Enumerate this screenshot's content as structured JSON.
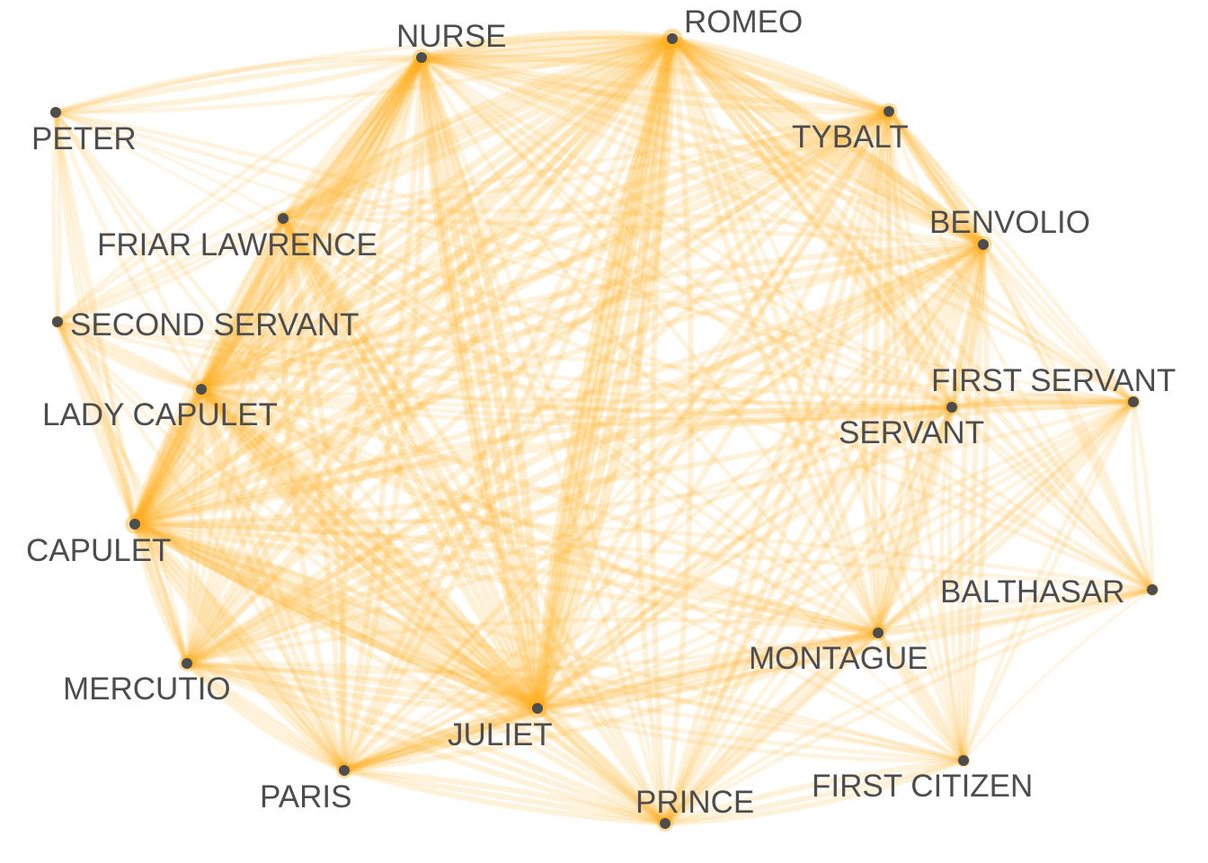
{
  "network": {
    "edge_color": "#FFB020",
    "node_color": "#4d4d4d",
    "label_color": "#4d4d4d",
    "nodes": [
      {
        "id": "NURSE",
        "label": "NURSE"
      },
      {
        "id": "ROMEO",
        "label": "ROMEO"
      },
      {
        "id": "PETER",
        "label": "PETER"
      },
      {
        "id": "TYBALT",
        "label": "TYBALT"
      },
      {
        "id": "FRIAR LAWRENCE",
        "label": "FRIAR LAWRENCE"
      },
      {
        "id": "BENVOLIO",
        "label": "BENVOLIO"
      },
      {
        "id": "SECOND SERVANT",
        "label": "SECOND SERVANT"
      },
      {
        "id": "FIRST SERVANT",
        "label": "FIRST SERVANT"
      },
      {
        "id": "LADY CAPULET",
        "label": "LADY CAPULET"
      },
      {
        "id": "SERVANT",
        "label": "SERVANT"
      },
      {
        "id": "CAPULET",
        "label": "CAPULET"
      },
      {
        "id": "BALTHASAR",
        "label": "BALTHASAR"
      },
      {
        "id": "MONTAGUE",
        "label": "MONTAGUE"
      },
      {
        "id": "MERCUTIO",
        "label": "MERCUTIO"
      },
      {
        "id": "JULIET",
        "label": "JULIET"
      },
      {
        "id": "PARIS",
        "label": "PARIS"
      },
      {
        "id": "PRINCE",
        "label": "PRINCE"
      },
      {
        "id": "FIRST CITIZEN",
        "label": "FIRST CITIZEN"
      }
    ],
    "edges": [
      [
        "ROMEO",
        "NURSE",
        5
      ],
      [
        "ROMEO",
        "JULIET",
        6
      ],
      [
        "ROMEO",
        "BENVOLIO",
        5
      ],
      [
        "ROMEO",
        "TYBALT",
        4
      ],
      [
        "ROMEO",
        "FRIAR LAWRENCE",
        4
      ],
      [
        "ROMEO",
        "LADY CAPULET",
        4
      ],
      [
        "ROMEO",
        "CAPULET",
        4
      ],
      [
        "ROMEO",
        "MERCUTIO",
        4
      ],
      [
        "ROMEO",
        "PARIS",
        3
      ],
      [
        "ROMEO",
        "PRINCE",
        3
      ],
      [
        "ROMEO",
        "MONTAGUE",
        3
      ],
      [
        "ROMEO",
        "SERVANT",
        3
      ],
      [
        "ROMEO",
        "FIRST SERVANT",
        2
      ],
      [
        "ROMEO",
        "BALTHASAR",
        3
      ],
      [
        "ROMEO",
        "PETER",
        2
      ],
      [
        "ROMEO",
        "SECOND SERVANT",
        2
      ],
      [
        "ROMEO",
        "FIRST CITIZEN",
        2
      ],
      [
        "NURSE",
        "JULIET",
        5
      ],
      [
        "NURSE",
        "LADY CAPULET",
        5
      ],
      [
        "NURSE",
        "CAPULET",
        5
      ],
      [
        "NURSE",
        "PETER",
        3
      ],
      [
        "NURSE",
        "FRIAR LAWRENCE",
        3
      ],
      [
        "NURSE",
        "BENVOLIO",
        3
      ],
      [
        "NURSE",
        "TYBALT",
        3
      ],
      [
        "NURSE",
        "MERCUTIO",
        3
      ],
      [
        "NURSE",
        "PARIS",
        3
      ],
      [
        "NURSE",
        "SECOND SERVANT",
        2
      ],
      [
        "NURSE",
        "PRINCE",
        2
      ],
      [
        "NURSE",
        "MONTAGUE",
        2
      ],
      [
        "NURSE",
        "SERVANT",
        2
      ],
      [
        "NURSE",
        "FIRST SERVANT",
        2
      ],
      [
        "NURSE",
        "BALTHASAR",
        2
      ],
      [
        "JULIET",
        "CAPULET",
        5
      ],
      [
        "JULIET",
        "LADY CAPULET",
        5
      ],
      [
        "JULIET",
        "PARIS",
        4
      ],
      [
        "JULIET",
        "FRIAR LAWRENCE",
        4
      ],
      [
        "JULIET",
        "TYBALT",
        3
      ],
      [
        "JULIET",
        "BENVOLIO",
        3
      ],
      [
        "JULIET",
        "MERCUTIO",
        3
      ],
      [
        "JULIET",
        "PRINCE",
        3
      ],
      [
        "JULIET",
        "MONTAGUE",
        3
      ],
      [
        "JULIET",
        "SERVANT",
        2
      ],
      [
        "JULIET",
        "FIRST SERVANT",
        2
      ],
      [
        "JULIET",
        "BALTHASAR",
        2
      ],
      [
        "JULIET",
        "SECOND SERVANT",
        2
      ],
      [
        "JULIET",
        "FIRST CITIZEN",
        2
      ],
      [
        "JULIET",
        "PETER",
        2
      ],
      [
        "CAPULET",
        "LADY CAPULET",
        5
      ],
      [
        "CAPULET",
        "TYBALT",
        4
      ],
      [
        "CAPULET",
        "PARIS",
        4
      ],
      [
        "CAPULET",
        "SERVANT",
        3
      ],
      [
        "CAPULET",
        "SECOND SERVANT",
        3
      ],
      [
        "CAPULET",
        "MONTAGUE",
        3
      ],
      [
        "CAPULET",
        "BENVOLIO",
        3
      ],
      [
        "CAPULET",
        "MERCUTIO",
        3
      ],
      [
        "CAPULET",
        "PRINCE",
        3
      ],
      [
        "CAPULET",
        "FRIAR LAWRENCE",
        3
      ],
      [
        "CAPULET",
        "PETER",
        2
      ],
      [
        "CAPULET",
        "FIRST SERVANT",
        2
      ],
      [
        "CAPULET",
        "FIRST CITIZEN",
        2
      ],
      [
        "CAPULET",
        "BALTHASAR",
        2
      ],
      [
        "LADY CAPULET",
        "TYBALT",
        4
      ],
      [
        "LADY CAPULET",
        "PARIS",
        3
      ],
      [
        "LADY CAPULET",
        "BENVOLIO",
        3
      ],
      [
        "LADY CAPULET",
        "MONTAGUE",
        3
      ],
      [
        "LADY CAPULET",
        "PRINCE",
        3
      ],
      [
        "LADY CAPULET",
        "SECOND SERVANT",
        3
      ],
      [
        "LADY CAPULET",
        "SERVANT",
        2
      ],
      [
        "LADY CAPULET",
        "MERCUTIO",
        2
      ],
      [
        "LADY CAPULET",
        "FRIAR LAWRENCE",
        3
      ],
      [
        "LADY CAPULET",
        "FIRST SERVANT",
        2
      ],
      [
        "LADY CAPULET",
        "FIRST CITIZEN",
        2
      ],
      [
        "LADY CAPULET",
        "PETER",
        2
      ],
      [
        "BENVOLIO",
        "TYBALT",
        4
      ],
      [
        "BENVOLIO",
        "MERCUTIO",
        4
      ],
      [
        "BENVOLIO",
        "MONTAGUE",
        3
      ],
      [
        "BENVOLIO",
        "PRINCE",
        3
      ],
      [
        "BENVOLIO",
        "SERVANT",
        3
      ],
      [
        "BENVOLIO",
        "FIRST SERVANT",
        2
      ],
      [
        "BENVOLIO",
        "FIRST CITIZEN",
        3
      ],
      [
        "BENVOLIO",
        "PARIS",
        2
      ],
      [
        "BENVOLIO",
        "FRIAR LAWRENCE",
        2
      ],
      [
        "BENVOLIO",
        "BALTHASAR",
        2
      ],
      [
        "TYBALT",
        "MERCUTIO",
        3
      ],
      [
        "TYBALT",
        "MONTAGUE",
        3
      ],
      [
        "TYBALT",
        "PRINCE",
        3
      ],
      [
        "TYBALT",
        "SERVANT",
        2
      ],
      [
        "TYBALT",
        "FIRST SERVANT",
        2
      ],
      [
        "TYBALT",
        "PARIS",
        2
      ],
      [
        "TYBALT",
        "FIRST CITIZEN",
        2
      ],
      [
        "TYBALT",
        "FRIAR LAWRENCE",
        2
      ],
      [
        "TYBALT",
        "BALTHASAR",
        2
      ],
      [
        "MERCUTIO",
        "PARIS",
        3
      ],
      [
        "MERCUTIO",
        "PRINCE",
        3
      ],
      [
        "MERCUTIO",
        "MONTAGUE",
        2
      ],
      [
        "MERCUTIO",
        "SERVANT",
        2
      ],
      [
        "MERCUTIO",
        "FIRST CITIZEN",
        2
      ],
      [
        "MERCUTIO",
        "SECOND SERVANT",
        2
      ],
      [
        "MERCUTIO",
        "FRIAR LAWRENCE",
        2
      ],
      [
        "MERCUTIO",
        "PETER",
        2
      ],
      [
        "PARIS",
        "FRIAR LAWRENCE",
        3
      ],
      [
        "PARIS",
        "PRINCE",
        3
      ],
      [
        "PARIS",
        "MONTAGUE",
        3
      ],
      [
        "PARIS",
        "SERVANT",
        2
      ],
      [
        "PARIS",
        "BALTHASAR",
        2
      ],
      [
        "PARIS",
        "SECOND SERVANT",
        2
      ],
      [
        "PARIS",
        "FIRST SERVANT",
        2
      ],
      [
        "PRINCE",
        "MONTAGUE",
        3
      ],
      [
        "PRINCE",
        "FIRST CITIZEN",
        3
      ],
      [
        "PRINCE",
        "FRIAR LAWRENCE",
        3
      ],
      [
        "PRINCE",
        "BALTHASAR",
        2
      ],
      [
        "PRINCE",
        "SERVANT",
        2
      ],
      [
        "PRINCE",
        "FIRST SERVANT",
        2
      ],
      [
        "MONTAGUE",
        "SERVANT",
        3
      ],
      [
        "MONTAGUE",
        "FIRST SERVANT",
        3
      ],
      [
        "MONTAGUE",
        "FIRST CITIZEN",
        3
      ],
      [
        "MONTAGUE",
        "BALTHASAR",
        2
      ],
      [
        "MONTAGUE",
        "FRIAR LAWRENCE",
        2
      ],
      [
        "SERVANT",
        "FIRST SERVANT",
        3
      ],
      [
        "SERVANT",
        "FIRST CITIZEN",
        2
      ],
      [
        "SERVANT",
        "BALTHASAR",
        2
      ],
      [
        "SERVANT",
        "SECOND SERVANT",
        2
      ],
      [
        "SERVANT",
        "PETER",
        2
      ],
      [
        "FIRST SERVANT",
        "SECOND SERVANT",
        2
      ],
      [
        "FIRST SERVANT",
        "BALTHASAR",
        2
      ],
      [
        "FIRST SERVANT",
        "FIRST CITIZEN",
        2
      ],
      [
        "FIRST SERVANT",
        "PETER",
        1
      ],
      [
        "BALTHASAR",
        "FIRST CITIZEN",
        1
      ],
      [
        "BALTHASAR",
        "FRIAR LAWRENCE",
        2
      ],
      [
        "FRIAR LAWRENCE",
        "SECOND SERVANT",
        2
      ],
      [
        "FRIAR LAWRENCE",
        "PETER",
        1
      ],
      [
        "SECOND SERVANT",
        "PETER",
        2
      ],
      [
        "PETER",
        "FIRST CITIZEN",
        1
      ]
    ]
  }
}
